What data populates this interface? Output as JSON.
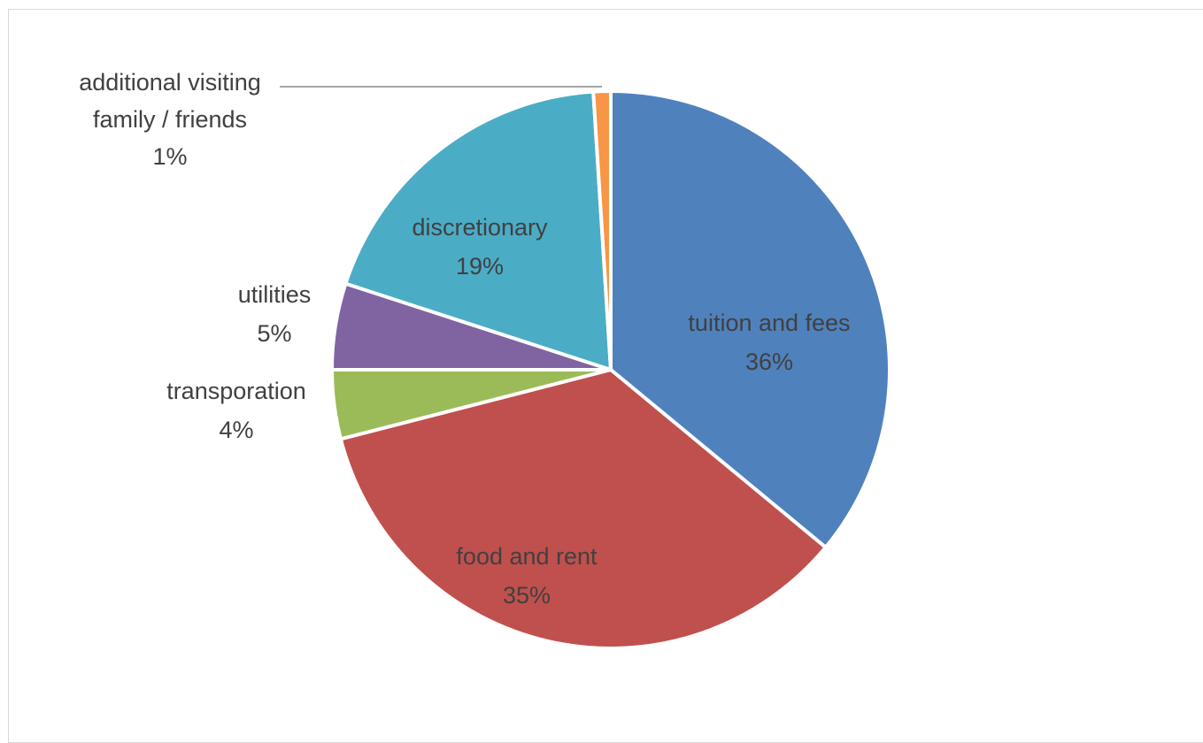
{
  "chart_data": {
    "type": "pie",
    "title": "",
    "slices": [
      {
        "label": "tuition and fees",
        "value": 36,
        "value_label": "36%",
        "color": "#4f81bd"
      },
      {
        "label": "food and rent",
        "value": 35,
        "value_label": "35%",
        "color": "#c0504d"
      },
      {
        "label": "transporation",
        "value": 4,
        "value_label": "4%",
        "color": "#9bbb59"
      },
      {
        "label": "utilities",
        "value": 5,
        "value_label": "5%",
        "color": "#8064a2"
      },
      {
        "label": "discretionary",
        "value": 19,
        "value_label": "19%",
        "color": "#4bacc6"
      },
      {
        "label": "additional visiting family / friends",
        "label_lines": [
          "additional visiting",
          "family / friends"
        ],
        "value": 1,
        "value_label": "1%",
        "color": "#f79646"
      }
    ],
    "legend": "none",
    "data_labels": "category and percentage"
  }
}
